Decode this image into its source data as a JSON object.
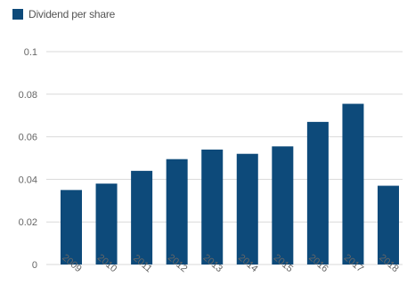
{
  "colors": {
    "bar": "#0d4a7a",
    "grid": "#d9d9d9",
    "axis_text": "#666666"
  },
  "chart_data": {
    "type": "bar",
    "title": "",
    "xlabel": "",
    "ylabel": "",
    "categories": [
      "2009",
      "2010",
      "2011",
      "2012",
      "2013",
      "2014",
      "2015",
      "2016",
      "2017",
      "2018"
    ],
    "series": [
      {
        "name": "Dividend per share",
        "values": [
          0.035,
          0.038,
          0.044,
          0.0495,
          0.054,
          0.052,
          0.0555,
          0.067,
          0.0755,
          0.037
        ]
      }
    ],
    "ylim": [
      0,
      0.1
    ],
    "yticks": [
      "0",
      "0.02",
      "0.04",
      "0.06",
      "0.08",
      "0.1"
    ],
    "grid": true,
    "legend_position": "top-left"
  }
}
